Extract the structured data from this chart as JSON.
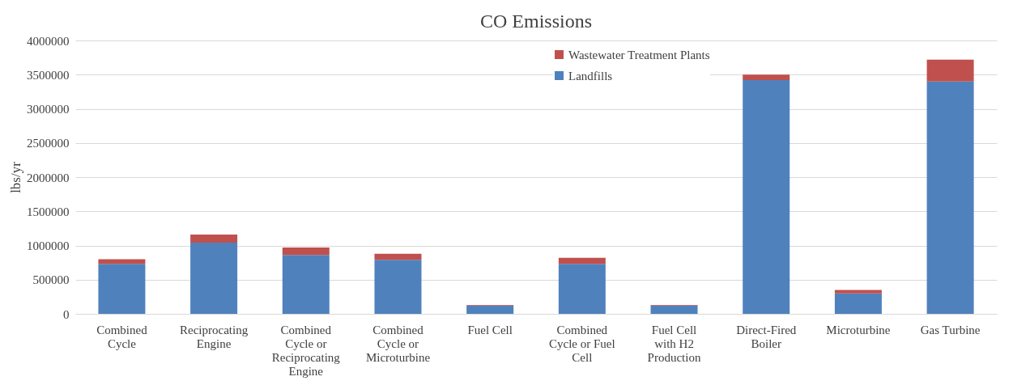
{
  "chart_data": {
    "type": "bar",
    "title": "CO Emissions",
    "ylabel": "lbs/yr",
    "categories": [
      "Combined Cycle",
      "Reciprocating Engine",
      "Combined Cycle or Reciprocating Engine",
      "Combined Cycle or Microturbine",
      "Fuel Cell",
      "Combined Cycle or Fuel Cell",
      "Fuel Cell with H2 Production",
      "Direct-Fired Boiler",
      "Microturbine",
      "Gas Turbine"
    ],
    "series": [
      {
        "name": "Landfills",
        "color": "#4f81bd",
        "values": [
          730000,
          1040000,
          860000,
          790000,
          120000,
          730000,
          120000,
          3420000,
          300000,
          3400000
        ]
      },
      {
        "name": "Wastewater Treatment Plants",
        "color": "#c0504d",
        "values": [
          70000,
          120000,
          110000,
          90000,
          10000,
          90000,
          10000,
          80000,
          50000,
          320000
        ]
      }
    ],
    "stacked": true,
    "ylim": [
      0,
      4000000
    ],
    "yticks": [
      0,
      500000,
      1000000,
      1500000,
      2000000,
      2500000,
      3000000,
      3500000,
      4000000
    ],
    "grid": "y",
    "legend": "top right"
  }
}
